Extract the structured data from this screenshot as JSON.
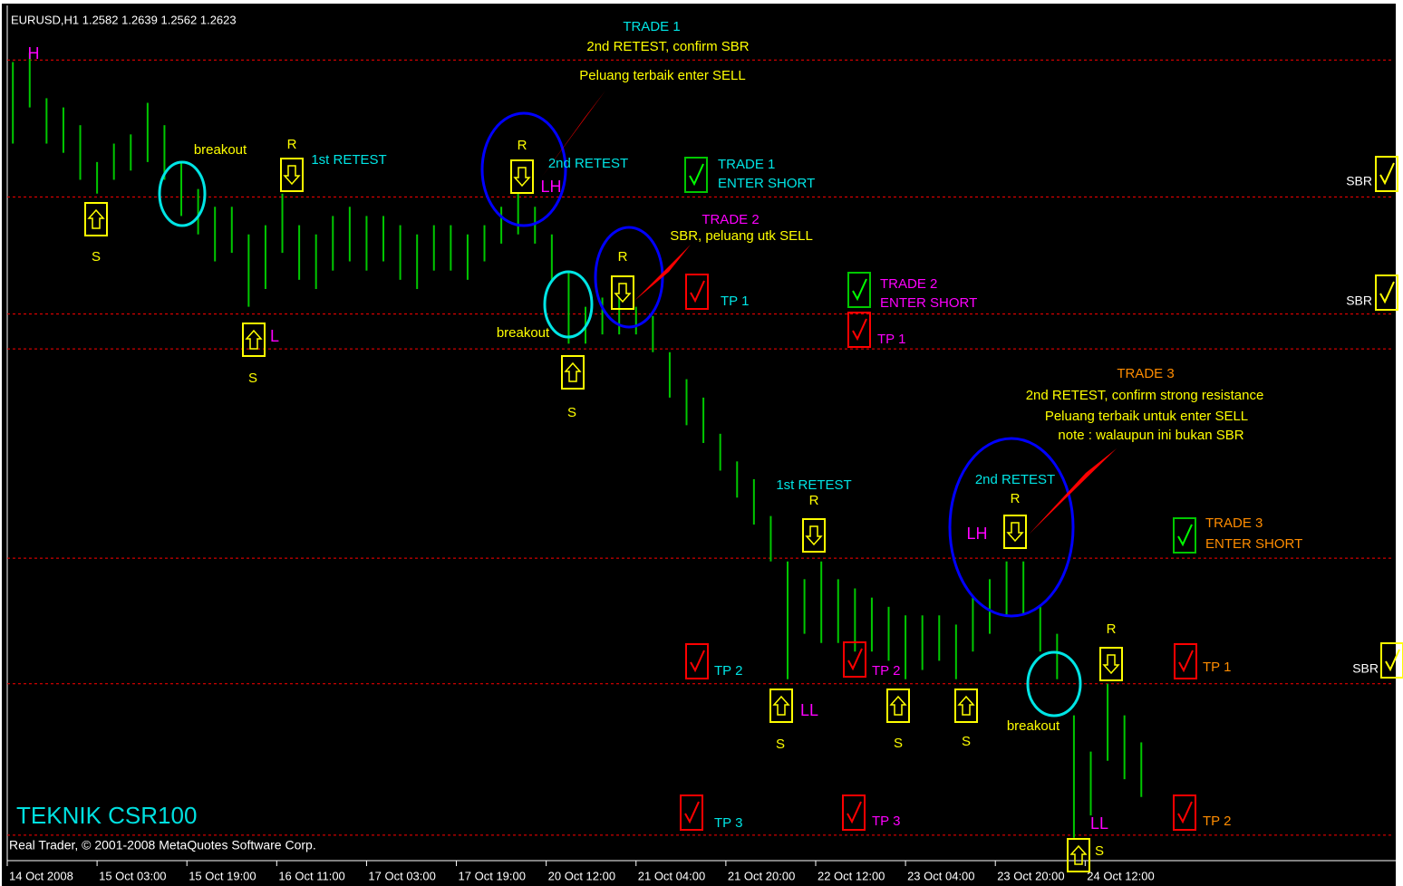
{
  "chart_data": {
    "type": "bar",
    "title": "EURUSD,H1  1.2582 1.2639 1.2562 1.2623",
    "watermark": "TEKNIK CSR100",
    "copyright": "Real Trader, © 2001-2008 MetaQuotes Software Corp.",
    "color": "#00c800",
    "level_color": "#ff0000",
    "x": [
      -5,
      -2,
      1,
      4,
      7,
      10,
      13,
      16,
      19,
      22,
      25,
      28,
      31,
      34,
      37,
      40,
      43,
      46,
      49,
      52,
      55,
      58,
      61,
      64,
      67,
      70,
      73,
      76,
      79,
      82,
      85,
      88,
      91,
      94,
      97,
      100,
      103,
      106,
      109,
      112,
      115,
      118,
      121,
      124,
      127,
      130,
      133,
      136,
      139,
      142,
      145,
      148,
      151,
      154,
      157,
      160,
      163,
      166,
      169,
      172,
      175,
      178,
      181,
      184,
      187,
      190,
      193,
      196
    ],
    "high": [
      1.3686,
      1.37,
      1.3631,
      1.3617,
      1.359,
      1.3534,
      1.3562,
      1.3576,
      1.3624,
      1.359,
      1.3534,
      1.3493,
      1.3466,
      1.3466,
      1.3424,
      1.3438,
      1.3486,
      1.3438,
      1.3424,
      1.3452,
      1.3466,
      1.3452,
      1.3452,
      1.3438,
      1.3424,
      1.3438,
      1.3438,
      1.3424,
      1.3438,
      1.3466,
      1.3486,
      1.3466,
      1.3424,
      1.3369,
      1.3314,
      1.3328,
      1.3328,
      1.3314,
      1.33,
      1.3245,
      1.3204,
      1.3176,
      1.3121,
      1.3079,
      1.3052,
      1.2996,
      1.2927,
      1.29,
      1.2927,
      1.29,
      1.2886,
      1.2872,
      1.2858,
      1.2845,
      1.2845,
      1.2845,
      1.2831,
      1.2872,
      1.29,
      1.2927,
      1.2927,
      1.2858,
      1.2817,
      1.2693,
      1.2638,
      1.2741,
      1.2693,
      1.2652
    ],
    "low": [
      1.3562,
      1.3617,
      1.3562,
      1.3548,
      1.3507,
      1.3486,
      1.3507,
      1.3521,
      1.3534,
      1.3507,
      1.3452,
      1.3424,
      1.3383,
      1.3396,
      1.3314,
      1.3341,
      1.3396,
      1.3355,
      1.3341,
      1.3369,
      1.3383,
      1.3369,
      1.3383,
      1.3355,
      1.3341,
      1.3369,
      1.3369,
      1.3355,
      1.3383,
      1.341,
      1.3424,
      1.341,
      1.3355,
      1.3258,
      1.3258,
      1.3272,
      1.3272,
      1.3272,
      1.3245,
      1.3176,
      1.3134,
      1.3107,
      1.3065,
      1.3024,
      1.2983,
      1.2927,
      1.2748,
      1.2817,
      1.2803,
      1.2803,
      1.279,
      1.279,
      1.2776,
      1.2748,
      1.2762,
      1.2776,
      1.2748,
      1.279,
      1.2817,
      1.2845,
      1.2845,
      1.279,
      1.2748,
      1.2507,
      1.2541,
      1.2624,
      1.2596,
      1.2569
    ],
    "levels": [
      1.3689,
      1.3481,
      1.3303,
      1.325,
      1.2932,
      1.2741,
      1.2511
    ],
    "xlim": [
      -6,
      241
    ],
    "ylim": [
      1.2475,
      1.3772
    ],
    "xticks": [
      {
        "value": -6,
        "label": "14 Oct 2008"
      },
      {
        "value": 10,
        "label": "15 Oct 03:00"
      },
      {
        "value": 26,
        "label": "15 Oct 19:00"
      },
      {
        "value": 42,
        "label": "16 Oct 11:00"
      },
      {
        "value": 58,
        "label": "17 Oct 03:00"
      },
      {
        "value": 74,
        "label": "17 Oct 19:00"
      },
      {
        "value": 90,
        "label": "20 Oct 12:00"
      },
      {
        "value": 106,
        "label": "21 Oct 04:00"
      },
      {
        "value": 122,
        "label": "21 Oct 20:00"
      },
      {
        "value": 138,
        "label": "22 Oct 12:00"
      },
      {
        "value": 154,
        "label": "23 Oct 04:00"
      },
      {
        "value": 170,
        "label": "23 Oct 20:00"
      },
      {
        "value": 186,
        "label": "24 Oct 12:00"
      }
    ],
    "annotations": [
      "H",
      "TRADE 1",
      "2nd RETEST, confirm SBR",
      "Peluang terbaik enter SELL",
      "breakout",
      "R",
      "1st RETEST",
      "S",
      "R",
      "2nd RETEST",
      "LH",
      "TRADE 1",
      "ENTER SHORT",
      "SBR",
      "TRADE 2",
      "SBR, peluang utk SELL",
      "R",
      "TP 1",
      "TRADE 2",
      "ENTER SHORT",
      "SBR",
      "L",
      "breakout",
      "TP 1",
      "S",
      "S",
      "TRADE 3",
      "2nd RETEST, confirm strong resistance",
      "Peluang terbaik untuk enter SELL",
      "note : walaupun ini bukan SBR",
      "1st RETEST",
      "2nd RETEST",
      "R",
      "R",
      "LH",
      "TRADE 3",
      "ENTER SHORT",
      "R",
      "TP 2",
      "TP 2",
      "TP 1",
      "SBR",
      "LL",
      "breakout",
      "S",
      "S",
      "S",
      "TP 3",
      "TP 3",
      "TP 2",
      "LL",
      "S"
    ]
  }
}
